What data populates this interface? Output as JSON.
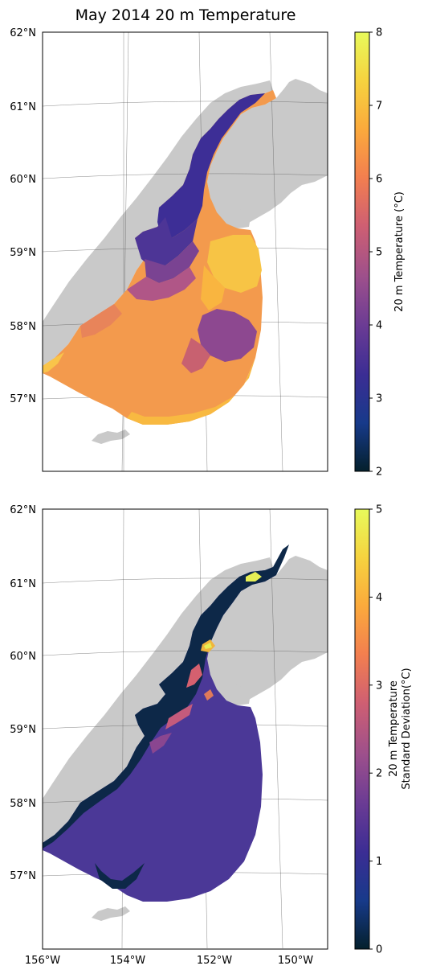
{
  "title": "May 2014 20 m Temperature",
  "lat_ticks": [
    "62°N",
    "61°N",
    "60°N",
    "59°N",
    "58°N",
    "57°N"
  ],
  "lon_ticks": [
    "156°W",
    "154°W",
    "152°W",
    "150°W"
  ],
  "panels": [
    {
      "colorbar": {
        "label_lines": [
          "20 m Temperature (°C)"
        ],
        "range": [
          2,
          8
        ],
        "ticks": [
          "2",
          "3",
          "4",
          "5",
          "6",
          "7",
          "8"
        ]
      }
    },
    {
      "colorbar": {
        "label_lines": [
          "20 m Temperature",
          "Standard Deviation(°C)"
        ],
        "range": [
          0,
          5
        ],
        "ticks": [
          "0",
          "1",
          "2",
          "3",
          "4",
          "5"
        ]
      }
    }
  ],
  "colormap": {
    "name": "thermal",
    "stops": [
      "#04202c",
      "#173a8a",
      "#3b2d94",
      "#6a3b94",
      "#9c4f8c",
      "#cf5f72",
      "#f37f4f",
      "#fbaa3c",
      "#f6d33f",
      "#e8fa5b"
    ]
  },
  "colors": {
    "land": "#c9c9c9",
    "background": "#ffffff"
  }
}
